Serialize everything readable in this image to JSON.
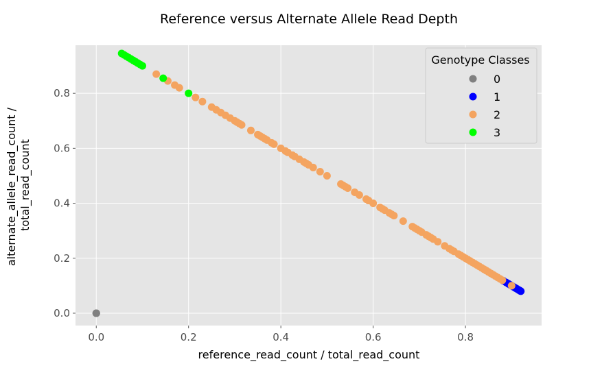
{
  "chart_data": {
    "type": "scatter",
    "title": "Reference versus Alternate Allele Read Depth",
    "xlabel": "reference_read_count / total_read_count",
    "ylabel_lines": [
      "alternate_allele_read_count  /",
      "total_read_count"
    ],
    "xlim": [
      -0.045,
      0.965
    ],
    "ylim": [
      -0.045,
      0.975
    ],
    "xticks": [
      0.0,
      0.2,
      0.4,
      0.6,
      0.8
    ],
    "yticks": [
      0.0,
      0.2,
      0.4,
      0.6,
      0.8
    ],
    "xtick_labels": [
      "0.0",
      "0.2",
      "0.4",
      "0.6",
      "0.8"
    ],
    "ytick_labels": [
      "0.0",
      "0.2",
      "0.4",
      "0.6",
      "0.8"
    ],
    "grid": true,
    "legend": {
      "title": "Genotype Classes",
      "placement": "top-right",
      "entries": [
        {
          "label": "0",
          "color": "#808080"
        },
        {
          "label": "1",
          "color": "#0000ff"
        },
        {
          "label": "2",
          "color": "#f4a460"
        },
        {
          "label": "3",
          "color": "#00ff00"
        }
      ]
    },
    "series": [
      {
        "name": "0",
        "color": "#808080",
        "points": [
          [
            0.0,
            0.0
          ],
          [
            0.0,
            0.0
          ],
          [
            0.0,
            0.0
          ]
        ]
      },
      {
        "name": "1",
        "color": "#0000ff",
        "points": [
          [
            0.882,
            0.118
          ],
          [
            0.888,
            0.112
          ],
          [
            0.893,
            0.107
          ],
          [
            0.897,
            0.103
          ],
          [
            0.901,
            0.099
          ],
          [
            0.905,
            0.095
          ],
          [
            0.908,
            0.092
          ],
          [
            0.911,
            0.089
          ],
          [
            0.914,
            0.086
          ],
          [
            0.917,
            0.083
          ],
          [
            0.919,
            0.081
          ],
          [
            0.92,
            0.08
          ]
        ]
      },
      {
        "name": "2",
        "color": "#f4a460",
        "points": [
          [
            0.13,
            0.87
          ],
          [
            0.155,
            0.845
          ],
          [
            0.17,
            0.83
          ],
          [
            0.18,
            0.82
          ],
          [
            0.215,
            0.785
          ],
          [
            0.23,
            0.77
          ],
          [
            0.25,
            0.75
          ],
          [
            0.26,
            0.74
          ],
          [
            0.27,
            0.73
          ],
          [
            0.28,
            0.72
          ],
          [
            0.29,
            0.71
          ],
          [
            0.3,
            0.7
          ],
          [
            0.305,
            0.695
          ],
          [
            0.31,
            0.69
          ],
          [
            0.315,
            0.685
          ],
          [
            0.335,
            0.665
          ],
          [
            0.35,
            0.65
          ],
          [
            0.355,
            0.645
          ],
          [
            0.36,
            0.64
          ],
          [
            0.365,
            0.635
          ],
          [
            0.37,
            0.63
          ],
          [
            0.38,
            0.62
          ],
          [
            0.385,
            0.615
          ],
          [
            0.4,
            0.6
          ],
          [
            0.41,
            0.59
          ],
          [
            0.415,
            0.585
          ],
          [
            0.425,
            0.575
          ],
          [
            0.43,
            0.57
          ],
          [
            0.44,
            0.56
          ],
          [
            0.45,
            0.55
          ],
          [
            0.455,
            0.545
          ],
          [
            0.46,
            0.54
          ],
          [
            0.47,
            0.53
          ],
          [
            0.485,
            0.515
          ],
          [
            0.5,
            0.5
          ],
          [
            0.53,
            0.47
          ],
          [
            0.535,
            0.465
          ],
          [
            0.54,
            0.46
          ],
          [
            0.545,
            0.455
          ],
          [
            0.56,
            0.44
          ],
          [
            0.57,
            0.43
          ],
          [
            0.585,
            0.415
          ],
          [
            0.59,
            0.41
          ],
          [
            0.6,
            0.4
          ],
          [
            0.615,
            0.385
          ],
          [
            0.62,
            0.38
          ],
          [
            0.625,
            0.375
          ],
          [
            0.635,
            0.365
          ],
          [
            0.64,
            0.36
          ],
          [
            0.645,
            0.355
          ],
          [
            0.665,
            0.335
          ],
          [
            0.685,
            0.315
          ],
          [
            0.69,
            0.31
          ],
          [
            0.695,
            0.305
          ],
          [
            0.7,
            0.3
          ],
          [
            0.705,
            0.295
          ],
          [
            0.715,
            0.285
          ],
          [
            0.72,
            0.28
          ],
          [
            0.725,
            0.275
          ],
          [
            0.73,
            0.27
          ],
          [
            0.74,
            0.26
          ],
          [
            0.755,
            0.245
          ],
          [
            0.765,
            0.235
          ],
          [
            0.77,
            0.23
          ],
          [
            0.775,
            0.225
          ],
          [
            0.785,
            0.215
          ],
          [
            0.79,
            0.21
          ],
          [
            0.795,
            0.205
          ],
          [
            0.8,
            0.2
          ],
          [
            0.805,
            0.195
          ],
          [
            0.81,
            0.19
          ],
          [
            0.815,
            0.185
          ],
          [
            0.82,
            0.18
          ],
          [
            0.825,
            0.175
          ],
          [
            0.83,
            0.17
          ],
          [
            0.835,
            0.165
          ],
          [
            0.84,
            0.16
          ],
          [
            0.845,
            0.155
          ],
          [
            0.85,
            0.15
          ],
          [
            0.855,
            0.145
          ],
          [
            0.86,
            0.14
          ],
          [
            0.865,
            0.135
          ],
          [
            0.87,
            0.13
          ],
          [
            0.875,
            0.125
          ],
          [
            0.88,
            0.12
          ],
          [
            0.9,
            0.1
          ]
        ]
      },
      {
        "name": "3",
        "color": "#00ff00",
        "points": [
          [
            0.055,
            0.945
          ],
          [
            0.06,
            0.94
          ],
          [
            0.065,
            0.935
          ],
          [
            0.07,
            0.93
          ],
          [
            0.075,
            0.925
          ],
          [
            0.08,
            0.92
          ],
          [
            0.085,
            0.915
          ],
          [
            0.09,
            0.91
          ],
          [
            0.095,
            0.905
          ],
          [
            0.1,
            0.9
          ],
          [
            0.145,
            0.855
          ],
          [
            0.2,
            0.8
          ]
        ]
      }
    ]
  }
}
